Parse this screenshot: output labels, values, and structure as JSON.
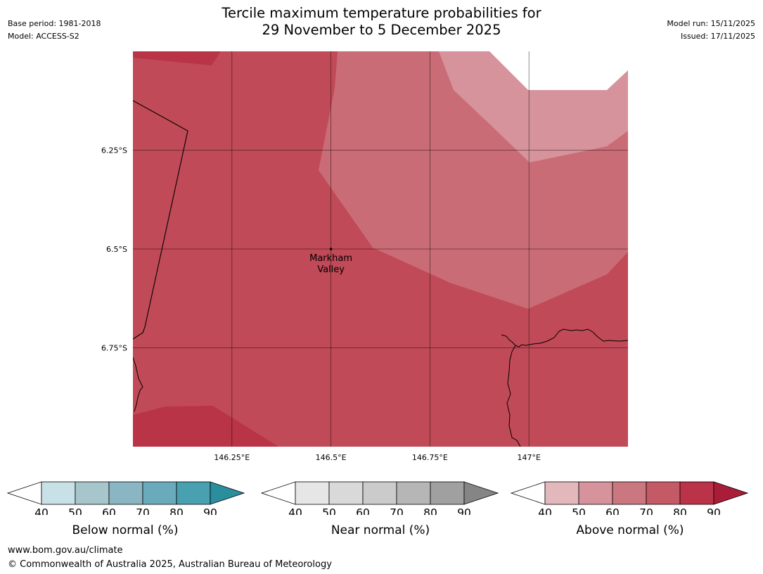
{
  "header": {
    "title_line1": "Tercile maximum temperature probabilities for",
    "title_line2": "29 November to 5 December 2025",
    "base_period": "Base period: 1981-2018",
    "model": "Model: ACCESS-S2",
    "model_run": "Model run: 15/11/2025",
    "issued": "Issued: 17/11/2025"
  },
  "map": {
    "lon_range": [
      146.0,
      147.25
    ],
    "lat_range": [
      -6.0,
      -7.0
    ],
    "lon_ticks": [
      {
        "value": 146.25,
        "label": "146.25°E"
      },
      {
        "value": 146.5,
        "label": "146.5°E"
      },
      {
        "value": 146.75,
        "label": "146.75°E"
      },
      {
        "value": 147.0,
        "label": "147°E"
      }
    ],
    "lat_ticks": [
      {
        "value": -6.25,
        "label": "6.25°S"
      },
      {
        "value": -6.5,
        "label": "6.5°S"
      },
      {
        "value": -6.75,
        "label": "6.75°S"
      }
    ],
    "place": {
      "name_line1": "Markham",
      "name_line2": "Valley",
      "lon": 146.5,
      "lat": -6.5
    },
    "colors": {
      "above_50_60": "#d6939b",
      "above_60_70": "#ca6c76",
      "above_70_80": "#c04a57",
      "above_80_90": "#b93446"
    }
  },
  "legends": [
    {
      "name": "below",
      "title": "Below normal (%)",
      "ticks": [
        "40",
        "50",
        "60",
        "70",
        "80",
        "90"
      ],
      "colors": [
        "#c8e1e6",
        "#a7c6cc",
        "#8ab6c3",
        "#6aabbb",
        "#48a0b0"
      ],
      "end_color": "#2a8e9c"
    },
    {
      "name": "near",
      "title": "Near normal (%)",
      "ticks": [
        "40",
        "50",
        "60",
        "70",
        "80",
        "90"
      ],
      "colors": [
        "#e6e6e6",
        "#d9d9d9",
        "#cbcbcb",
        "#b6b6b6",
        "#a0a0a0"
      ],
      "end_color": "#858585"
    },
    {
      "name": "above",
      "title": "Above normal (%)",
      "ticks": [
        "40",
        "50",
        "60",
        "70",
        "80",
        "90"
      ],
      "colors": [
        "#e3b8bd",
        "#d6939b",
        "#ca777f",
        "#c35a66",
        "#bb3348"
      ],
      "end_color": "#a91d38"
    }
  ],
  "footer": {
    "url": "www.bom.gov.au/climate",
    "copyright": "© Commonwealth of Australia 2025, Australian Bureau of Meteorology"
  }
}
